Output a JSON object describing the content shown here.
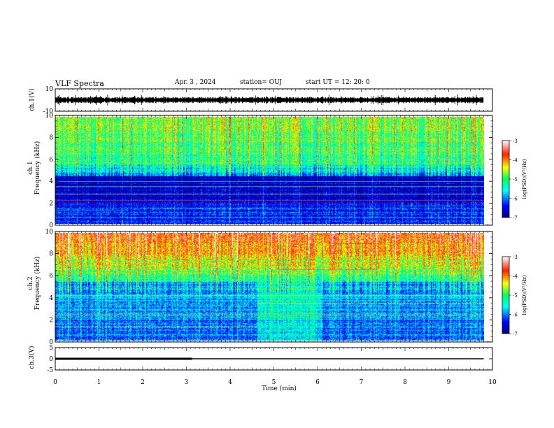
{
  "header": {
    "title": "VLF Spectra",
    "date": "Apr. 3 , 2024",
    "station": "station= OUJ",
    "start_ut": "start UT = 12: 20: 0"
  },
  "chart_data": [
    {
      "type": "line",
      "panel": "ch.1 waveform",
      "ylabel": "ch.1(V)",
      "ylim": [
        -10,
        10
      ],
      "yticks": [
        "10",
        "-10"
      ],
      "xlim": [
        0,
        10
      ],
      "x_data_end": 9.8,
      "baseline": 0,
      "amplitude": 2
    },
    {
      "type": "heatmap",
      "panel": "ch.1 spectrogram",
      "ylabel": "ch.1\nFrequency (kHz)",
      "ylim": [
        0,
        10
      ],
      "yticks": [
        "0",
        "2",
        "4",
        "6",
        "8",
        "10"
      ],
      "xlim": [
        0,
        10
      ],
      "x_data_end": 9.8,
      "colorbar": {
        "label": "log(PSD)(V²/Hz)",
        "range": [
          -7,
          -3
        ],
        "ticks": [
          "-3",
          "-4",
          "-5",
          "-6",
          "-7"
        ]
      }
    },
    {
      "type": "heatmap",
      "panel": "ch.2 spectrogram",
      "ylabel": "ch.2\nFrequency (kHz)",
      "ylim": [
        0,
        10
      ],
      "yticks": [
        "0",
        "2",
        "4",
        "6",
        "8",
        "10"
      ],
      "xlim": [
        0,
        10
      ],
      "x_data_end": 9.8,
      "colorbar": {
        "label": "log(PSD)(V²/Hz)",
        "range": [
          -7,
          -3
        ],
        "ticks": [
          "-3",
          "-4",
          "-5",
          "-6",
          "-7"
        ]
      }
    },
    {
      "type": "line",
      "panel": "ch.3 voltage",
      "ylabel": "ch.3(V)",
      "ylim": [
        -5,
        5
      ],
      "yticks": [
        "5",
        "0",
        "-5"
      ],
      "xlim": [
        0,
        10
      ],
      "series": [
        {
          "x": [
            0,
            3.13
          ],
          "y": [
            0,
            0
          ]
        },
        {
          "x": [
            3.13,
            9.8
          ],
          "y": [
            0,
            0
          ]
        }
      ]
    }
  ],
  "xaxis": {
    "label": "Time (min)",
    "ticks": [
      "0",
      "1",
      "2",
      "3",
      "4",
      "5",
      "6",
      "7",
      "8",
      "9",
      "10"
    ]
  }
}
